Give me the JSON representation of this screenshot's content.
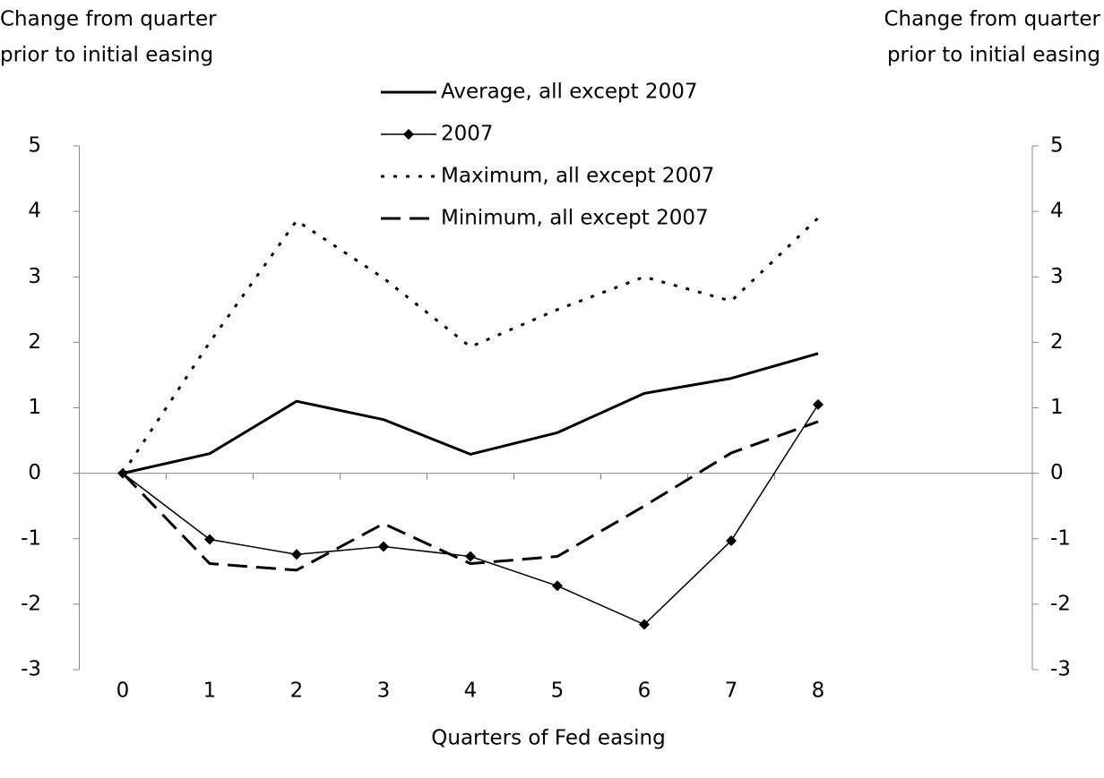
{
  "chart_data": {
    "type": "line",
    "ylabel": [
      "Change from quarter",
      "prior to initial easing"
    ],
    "y2label": [
      "Change from quarter",
      "prior to initial easing"
    ],
    "xlabel": "Quarters of Fed easing",
    "categories": [
      "0",
      "1",
      "2",
      "3",
      "4",
      "5",
      "6",
      "7",
      "8"
    ],
    "ylim": [
      -3,
      5
    ],
    "yticks": [
      -3,
      -2,
      -1,
      0,
      1,
      2,
      3,
      4,
      5
    ],
    "y2lim": [
      -3,
      5
    ],
    "y2ticks": [
      -3,
      -2,
      -1,
      0,
      1,
      2,
      3,
      4,
      5
    ],
    "grid": false,
    "legend": "top",
    "series": [
      {
        "name": "Average, all except 2007",
        "color": "#000000",
        "style": "solid",
        "width": 3,
        "values": [
          0,
          0.3,
          1.1,
          0.82,
          0.29,
          0.62,
          1.22,
          1.45,
          1.83
        ]
      },
      {
        "name": "2007",
        "color": "#000000",
        "style": "solid",
        "width": 1.5,
        "marker": "diamond",
        "values": [
          0,
          -1.01,
          -1.24,
          -1.12,
          -1.27,
          -1.72,
          -2.31,
          -1.03,
          1.05
        ]
      },
      {
        "name": "Maximum, all except 2007",
        "color": "#000000",
        "style": "dotted",
        "width": 3,
        "values": [
          0,
          2.0,
          3.86,
          2.98,
          1.93,
          2.5,
          3.0,
          2.63,
          3.9
        ]
      },
      {
        "name": "Minimum, all except 2007",
        "color": "#000000",
        "style": "dashed",
        "width": 3,
        "values": [
          0,
          -1.38,
          -1.48,
          -0.77,
          -1.38,
          -1.27,
          -0.5,
          0.31,
          0.79
        ]
      }
    ]
  }
}
